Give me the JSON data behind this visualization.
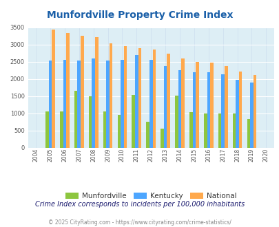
{
  "title": "Munfordville Property Crime Index",
  "years": [
    2004,
    2005,
    2006,
    2007,
    2008,
    2009,
    2010,
    2011,
    2012,
    2013,
    2014,
    2015,
    2016,
    2017,
    2018,
    2019,
    2020
  ],
  "munfordville": [
    0,
    1060,
    1060,
    1650,
    1500,
    1060,
    960,
    1530,
    760,
    560,
    1510,
    1030,
    990,
    990,
    990,
    840,
    0
  ],
  "kentucky": [
    0,
    2530,
    2555,
    2530,
    2590,
    2530,
    2555,
    2700,
    2555,
    2380,
    2255,
    2190,
    2200,
    2140,
    1965,
    1900,
    0
  ],
  "national": [
    0,
    3430,
    3340,
    3260,
    3210,
    3040,
    2950,
    2900,
    2850,
    2730,
    2600,
    2500,
    2470,
    2370,
    2210,
    2110,
    0
  ],
  "munfordville_color": "#8dc63f",
  "kentucky_color": "#4da6ff",
  "national_color": "#ffa94d",
  "bg_color": "#ddeef5",
  "ylim": [
    0,
    3500
  ],
  "yticks": [
    0,
    500,
    1000,
    1500,
    2000,
    2500,
    3000,
    3500
  ],
  "subtitle": "Crime Index corresponds to incidents per 100,000 inhabitants",
  "footer": "© 2025 CityRating.com - https://www.cityrating.com/crime-statistics/",
  "title_color": "#1a5fa8",
  "subtitle_color": "#1a1a6e",
  "footer_color": "#888888"
}
